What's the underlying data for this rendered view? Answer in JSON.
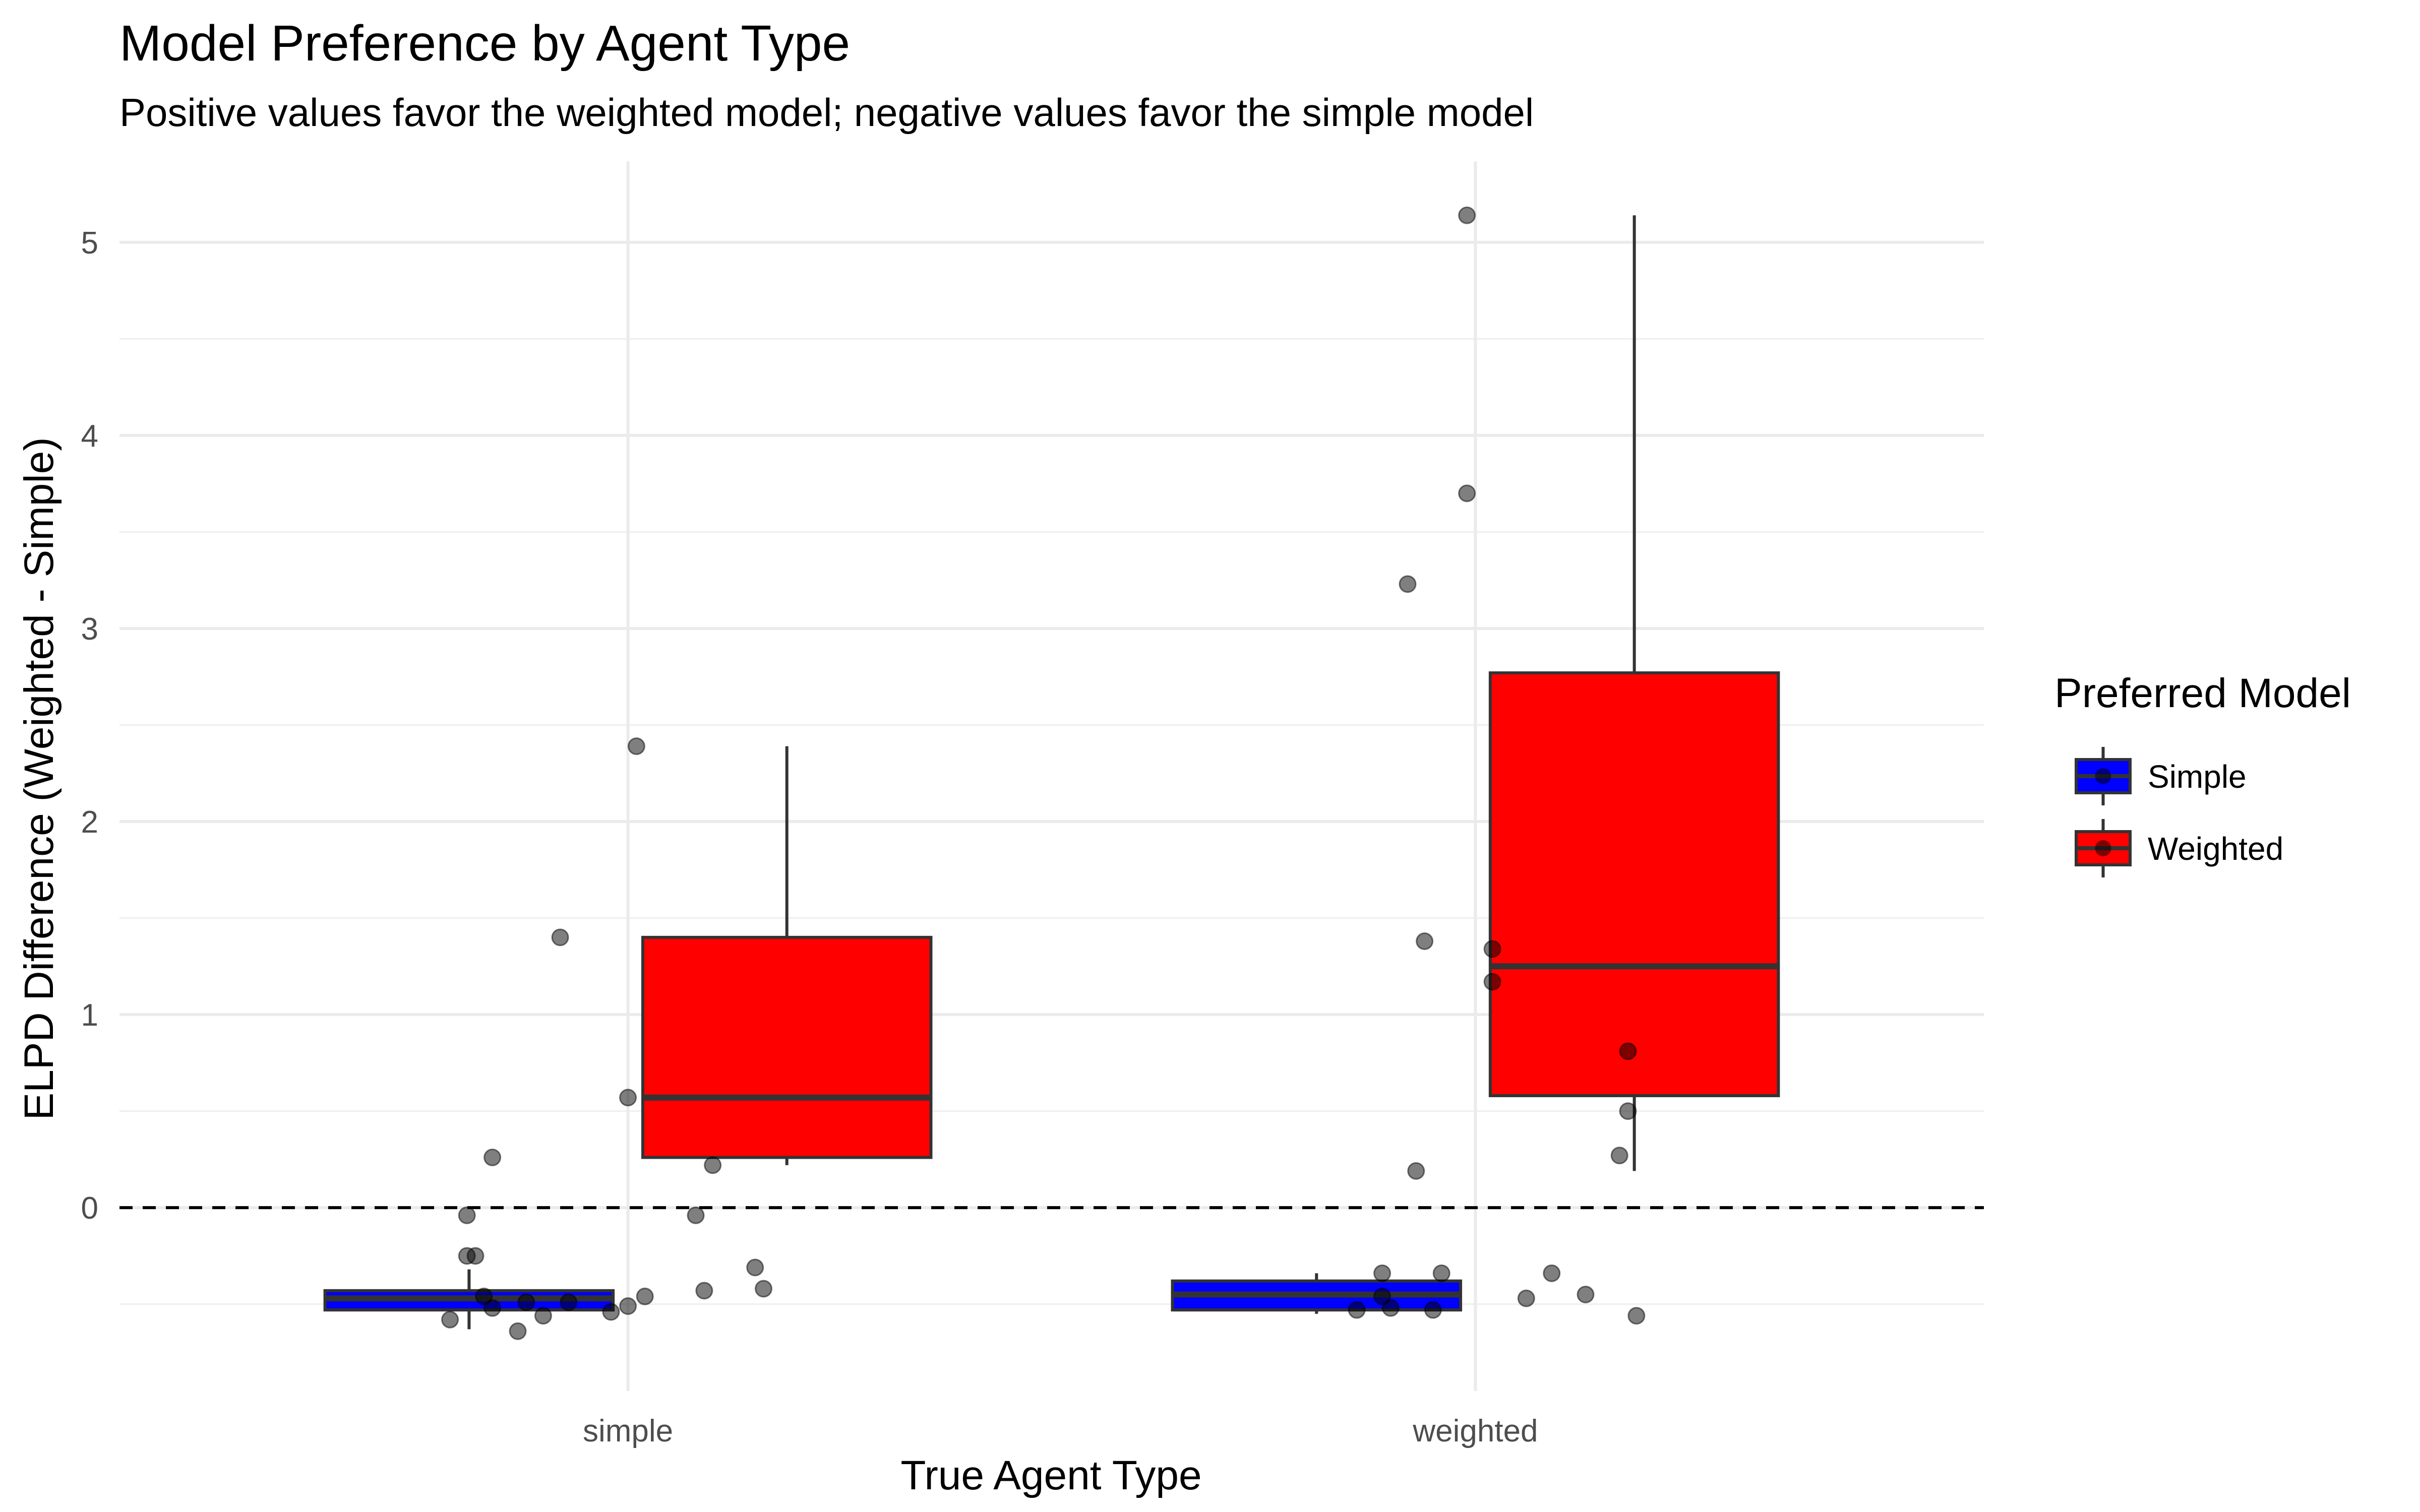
{
  "chart_data": {
    "type": "box",
    "title": "Model Preference by Agent Type",
    "subtitle": "Positive values favor the weighted model; negative values favor the simple model",
    "xlabel": "True Agent Type",
    "ylabel": "ELPD Difference (Weighted - Simple)",
    "categories": [
      "simple",
      "weighted"
    ],
    "ylim": [
      -0.95,
      5.42
    ],
    "yticks": [
      0,
      1,
      2,
      3,
      4,
      5
    ],
    "grid": true,
    "reference_line": {
      "y": 0,
      "style": "dashed"
    },
    "legend": {
      "title": "Preferred Model",
      "position": "right",
      "entries": [
        {
          "label": "Simple",
          "color": "#0000ff"
        },
        {
          "label": "Weighted",
          "color": "#ff0000"
        }
      ]
    },
    "boxes": [
      {
        "category": "simple",
        "group": "Simple",
        "color": "#0000ff",
        "whisker_low": -0.63,
        "q1": -0.53,
        "median": -0.47,
        "q3": -0.43,
        "whisker_high": -0.32
      },
      {
        "category": "simple",
        "group": "Weighted",
        "color": "#ff0000",
        "whisker_low": 0.22,
        "q1": 0.26,
        "median": 0.57,
        "q3": 1.4,
        "whisker_high": 2.39
      },
      {
        "category": "weighted",
        "group": "Simple",
        "color": "#0000ff",
        "whisker_low": -0.55,
        "q1": -0.53,
        "median": -0.45,
        "q3": -0.38,
        "whisker_high": -0.34
      },
      {
        "category": "weighted",
        "group": "Weighted",
        "color": "#ff0000",
        "whisker_low": 0.19,
        "q1": 0.58,
        "median": 1.25,
        "q3": 2.77,
        "whisker_high": 5.14
      }
    ],
    "points": [
      {
        "category": "simple",
        "jitter": -0.19,
        "y": -0.04
      },
      {
        "category": "simple",
        "jitter": -0.19,
        "y": -0.25
      },
      {
        "category": "simple",
        "jitter": -0.18,
        "y": -0.25
      },
      {
        "category": "simple",
        "jitter": -0.17,
        "y": -0.46
      },
      {
        "category": "simple",
        "jitter": -0.16,
        "y": -0.52
      },
      {
        "category": "simple",
        "jitter": -0.21,
        "y": -0.58
      },
      {
        "category": "simple",
        "jitter": -0.16,
        "y": 0.26
      },
      {
        "category": "simple",
        "jitter": -0.12,
        "y": -0.49
      },
      {
        "category": "simple",
        "jitter": -0.1,
        "y": -0.56
      },
      {
        "category": "simple",
        "jitter": -0.13,
        "y": -0.64
      },
      {
        "category": "simple",
        "jitter": -0.07,
        "y": -0.49
      },
      {
        "category": "simple",
        "jitter": -0.08,
        "y": 1.4
      },
      {
        "category": "simple",
        "jitter": -0.02,
        "y": -0.54
      },
      {
        "category": "simple",
        "jitter": 0.0,
        "y": -0.51
      },
      {
        "category": "simple",
        "jitter": 0.0,
        "y": 0.57
      },
      {
        "category": "simple",
        "jitter": 0.01,
        "y": 2.39
      },
      {
        "category": "simple",
        "jitter": 0.02,
        "y": -0.46
      },
      {
        "category": "simple",
        "jitter": 0.08,
        "y": -0.04
      },
      {
        "category": "simple",
        "jitter": 0.09,
        "y": -0.43
      },
      {
        "category": "simple",
        "jitter": 0.1,
        "y": 0.22
      },
      {
        "category": "simple",
        "jitter": 0.15,
        "y": -0.31
      },
      {
        "category": "simple",
        "jitter": 0.16,
        "y": -0.42
      },
      {
        "category": "weighted",
        "jitter": -0.14,
        "y": -0.53
      },
      {
        "category": "weighted",
        "jitter": -0.11,
        "y": -0.34
      },
      {
        "category": "weighted",
        "jitter": -0.11,
        "y": -0.46
      },
      {
        "category": "weighted",
        "jitter": -0.1,
        "y": -0.52
      },
      {
        "category": "weighted",
        "jitter": -0.08,
        "y": 3.23
      },
      {
        "category": "weighted",
        "jitter": -0.07,
        "y": 0.19
      },
      {
        "category": "weighted",
        "jitter": -0.06,
        "y": 1.38
      },
      {
        "category": "weighted",
        "jitter": -0.05,
        "y": -0.53
      },
      {
        "category": "weighted",
        "jitter": -0.04,
        "y": -0.34
      },
      {
        "category": "weighted",
        "jitter": -0.01,
        "y": 3.7
      },
      {
        "category": "weighted",
        "jitter": -0.01,
        "y": 5.14
      },
      {
        "category": "weighted",
        "jitter": 0.02,
        "y": 1.34
      },
      {
        "category": "weighted",
        "jitter": 0.02,
        "y": 1.17
      },
      {
        "category": "weighted",
        "jitter": 0.06,
        "y": -0.47
      },
      {
        "category": "weighted",
        "jitter": 0.09,
        "y": -0.34
      },
      {
        "category": "weighted",
        "jitter": 0.13,
        "y": -0.45
      },
      {
        "category": "weighted",
        "jitter": 0.17,
        "y": 0.27
      },
      {
        "category": "weighted",
        "jitter": 0.18,
        "y": 0.5
      },
      {
        "category": "weighted",
        "jitter": 0.18,
        "y": 0.81
      },
      {
        "category": "weighted",
        "jitter": 0.19,
        "y": -0.56
      }
    ]
  }
}
